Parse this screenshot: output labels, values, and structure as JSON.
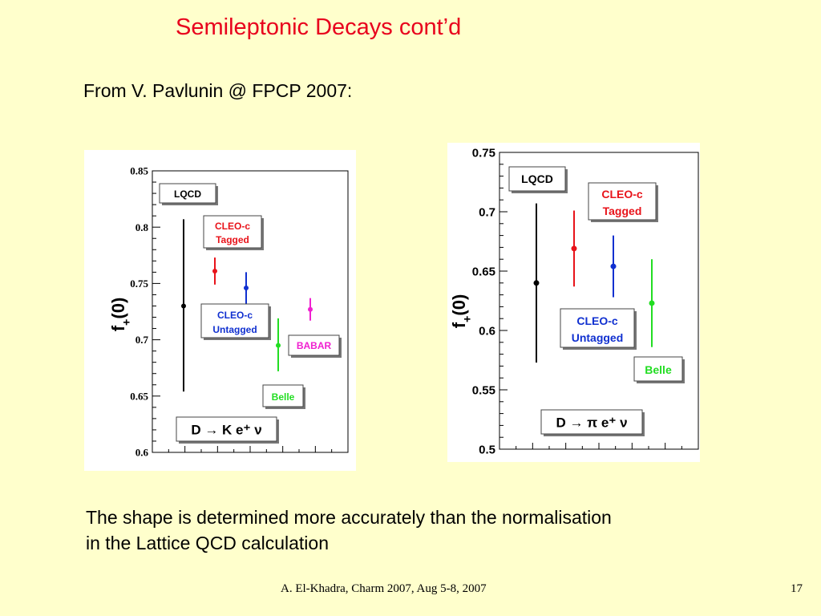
{
  "slide": {
    "title": "Semileptonic Decays cont’d",
    "subtitle": "From V. Pavlunin @ FPCP 2007:",
    "body_line1": "The shape is determined more accurately than the normalisation",
    "body_line2": "in the Lattice QCD calculation",
    "footer": "A. El-Khadra, Charm 2007, Aug 5-8, 2007",
    "page_number": "17"
  },
  "chart_data": [
    {
      "type": "scatter",
      "title": "",
      "ylabel": "f+(0)",
      "ylim": [
        0.6,
        0.85
      ],
      "yticks": [
        0.6,
        0.65,
        0.7,
        0.75,
        0.8,
        0.85
      ],
      "ytick_labels": [
        "0.6",
        "0.65",
        "0.7",
        "0.75",
        "0.8",
        "0.85"
      ],
      "process_label": "D → K e⁺ ν",
      "points": [
        {
          "label": "LQCD",
          "value": 0.73,
          "low": 0.654,
          "high": 0.807,
          "color": "#000000"
        },
        {
          "label": "CLEO-c Tagged",
          "value": 0.761,
          "low": 0.749,
          "high": 0.773,
          "color": "#E8131A"
        },
        {
          "label": "CLEO-c Untagged",
          "value": 0.746,
          "low": 0.732,
          "high": 0.76,
          "color": "#1030D0"
        },
        {
          "label": "Belle",
          "value": 0.695,
          "low": 0.672,
          "high": 0.719,
          "color": "#22DD22"
        },
        {
          "label": "BABAR",
          "value": 0.727,
          "low": 0.717,
          "high": 0.737,
          "color": "#F020D0"
        }
      ]
    },
    {
      "type": "scatter",
      "title": "",
      "ylabel": "f+(0)",
      "ylim": [
        0.5,
        0.75
      ],
      "yticks": [
        0.5,
        0.55,
        0.6,
        0.65,
        0.7,
        0.75
      ],
      "ytick_labels": [
        "0.5",
        "0.55",
        "0.6",
        "0.65",
        "0.7",
        "0.75"
      ],
      "process_label": "D → π e⁺ ν",
      "points": [
        {
          "label": "LQCD",
          "value": 0.64,
          "low": 0.573,
          "high": 0.707,
          "color": "#000000"
        },
        {
          "label": "CLEO-c Tagged",
          "value": 0.669,
          "low": 0.637,
          "high": 0.701,
          "color": "#E8131A"
        },
        {
          "label": "CLEO-c Untagged",
          "value": 0.654,
          "low": 0.628,
          "high": 0.68,
          "color": "#1030D0"
        },
        {
          "label": "Belle",
          "value": 0.623,
          "low": 0.586,
          "high": 0.66,
          "color": "#22DD22"
        }
      ]
    }
  ]
}
